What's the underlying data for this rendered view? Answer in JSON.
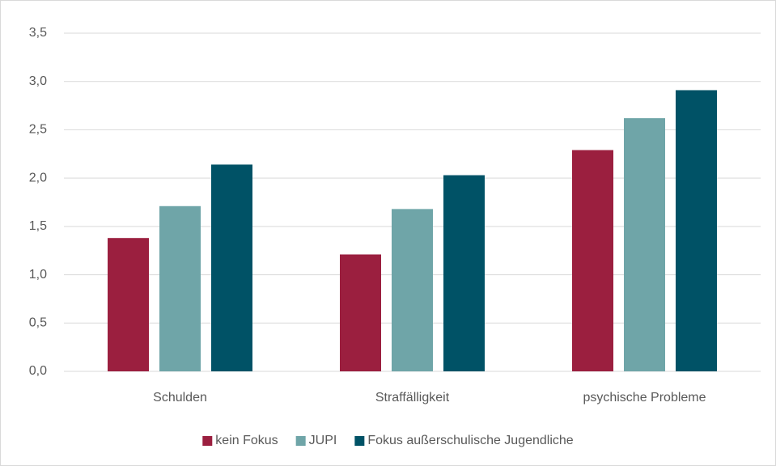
{
  "chart_data": {
    "type": "bar",
    "categories": [
      "Schulden",
      "Straffälligkeit",
      "psychische Probleme"
    ],
    "series": [
      {
        "name": "kein Fokus",
        "color": "#9b1f3f",
        "values": [
          1.38,
          1.21,
          2.29
        ]
      },
      {
        "name": "JUPI",
        "color": "#6fa5a8",
        "values": [
          1.71,
          1.68,
          2.62
        ]
      },
      {
        "name": "Fokus außerschulische Jugendliche",
        "color": "#005266",
        "values": [
          2.14,
          2.03,
          2.91
        ]
      }
    ],
    "ylim": [
      0,
      3.5
    ],
    "yticks": [
      {
        "value": 0,
        "label": "0,0"
      },
      {
        "value": 0.5,
        "label": "0,5"
      },
      {
        "value": 1,
        "label": "1,0"
      },
      {
        "value": 1.5,
        "label": "1,5"
      },
      {
        "value": 2,
        "label": "2,0"
      },
      {
        "value": 2.5,
        "label": "2,5"
      },
      {
        "value": 3,
        "label": "3,0"
      },
      {
        "value": 3.5,
        "label": "3,5"
      }
    ],
    "grid": true,
    "legend": "bottom"
  }
}
